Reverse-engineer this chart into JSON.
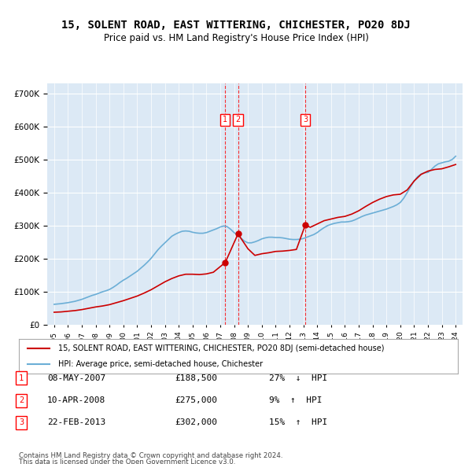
{
  "title": "15, SOLENT ROAD, EAST WITTERING, CHICHESTER, PO20 8DJ",
  "subtitle": "Price paid vs. HM Land Registry's House Price Index (HPI)",
  "ylabel_format": "£{0}K",
  "yticks": [
    0,
    100000,
    200000,
    300000,
    400000,
    500000,
    600000,
    700000
  ],
  "ytick_labels": [
    "£0",
    "£100K",
    "£200K",
    "£300K",
    "£400K",
    "£500K",
    "£600K",
    "£700K"
  ],
  "background_color": "#dce9f5",
  "plot_bg": "#dce9f5",
  "grid_color": "white",
  "red_line_label": "15, SOLENT ROAD, EAST WITTERING, CHICHESTER, PO20 8DJ (semi-detached house)",
  "blue_line_label": "HPI: Average price, semi-detached house, Chichester",
  "transactions": [
    {
      "num": 1,
      "date": "08-MAY-2007",
      "price": 188500,
      "pct": "27%",
      "dir": "↓",
      "x_year": 2007.36
    },
    {
      "num": 2,
      "date": "10-APR-2008",
      "price": 275000,
      "pct": "9%",
      "dir": "↑",
      "x_year": 2008.28
    },
    {
      "num": 3,
      "date": "22-FEB-2013",
      "price": 302000,
      "pct": "15%",
      "dir": "↑",
      "x_year": 2013.14
    }
  ],
  "footer1": "Contains HM Land Registry data © Crown copyright and database right 2024.",
  "footer2": "This data is licensed under the Open Government Licence v3.0.",
  "hpi_years": [
    1995.0,
    1995.25,
    1995.5,
    1995.75,
    1996.0,
    1996.25,
    1996.5,
    1996.75,
    1997.0,
    1997.25,
    1997.5,
    1997.75,
    1998.0,
    1998.25,
    1998.5,
    1998.75,
    1999.0,
    1999.25,
    1999.5,
    1999.75,
    2000.0,
    2000.25,
    2000.5,
    2000.75,
    2001.0,
    2001.25,
    2001.5,
    2001.75,
    2002.0,
    2002.25,
    2002.5,
    2002.75,
    2003.0,
    2003.25,
    2003.5,
    2003.75,
    2004.0,
    2004.25,
    2004.5,
    2004.75,
    2005.0,
    2005.25,
    2005.5,
    2005.75,
    2006.0,
    2006.25,
    2006.5,
    2006.75,
    2007.0,
    2007.25,
    2007.5,
    2007.75,
    2008.0,
    2008.25,
    2008.5,
    2008.75,
    2009.0,
    2009.25,
    2009.5,
    2009.75,
    2010.0,
    2010.25,
    2010.5,
    2010.75,
    2011.0,
    2011.25,
    2011.5,
    2011.75,
    2012.0,
    2012.25,
    2012.5,
    2012.75,
    2013.0,
    2013.25,
    2013.5,
    2013.75,
    2014.0,
    2014.25,
    2014.5,
    2014.75,
    2015.0,
    2015.25,
    2015.5,
    2015.75,
    2016.0,
    2016.25,
    2016.5,
    2016.75,
    2017.0,
    2017.25,
    2017.5,
    2017.75,
    2018.0,
    2018.25,
    2018.5,
    2018.75,
    2019.0,
    2019.25,
    2019.5,
    2019.75,
    2020.0,
    2020.25,
    2020.5,
    2020.75,
    2021.0,
    2021.25,
    2021.5,
    2021.75,
    2022.0,
    2022.25,
    2022.5,
    2022.75,
    2023.0,
    2023.25,
    2023.5,
    2023.75,
    2024.0
  ],
  "hpi_values": [
    62000,
    63000,
    64000,
    65500,
    67000,
    69000,
    71000,
    74000,
    77000,
    81000,
    85000,
    89000,
    92000,
    96000,
    100000,
    103000,
    107000,
    113000,
    120000,
    128000,
    135000,
    141000,
    148000,
    155000,
    162000,
    171000,
    180000,
    190000,
    201000,
    214000,
    227000,
    238000,
    248000,
    258000,
    268000,
    274000,
    279000,
    283000,
    284000,
    283000,
    280000,
    278000,
    277000,
    277000,
    279000,
    283000,
    287000,
    291000,
    296000,
    299000,
    297000,
    289000,
    279000,
    271000,
    262000,
    253000,
    248000,
    248000,
    251000,
    255000,
    260000,
    263000,
    265000,
    265000,
    264000,
    264000,
    263000,
    261000,
    259000,
    258000,
    258000,
    259000,
    261000,
    265000,
    269000,
    273000,
    279000,
    287000,
    294000,
    300000,
    304000,
    307000,
    309000,
    311000,
    311000,
    312000,
    314000,
    318000,
    323000,
    328000,
    332000,
    335000,
    338000,
    341000,
    344000,
    347000,
    350000,
    354000,
    358000,
    363000,
    370000,
    383000,
    400000,
    418000,
    435000,
    448000,
    456000,
    460000,
    461000,
    470000,
    480000,
    487000,
    490000,
    493000,
    495000,
    500000,
    510000
  ],
  "red_years": [
    1995.0,
    1995.5,
    1996.0,
    1996.5,
    1997.0,
    1997.5,
    1998.0,
    1998.5,
    1999.0,
    1999.5,
    2000.0,
    2000.5,
    2001.0,
    2001.5,
    2002.0,
    2002.5,
    2003.0,
    2003.5,
    2004.0,
    2004.5,
    2005.0,
    2005.5,
    2006.0,
    2006.5,
    2007.36,
    2008.28,
    2009.0,
    2009.5,
    2010.0,
    2010.5,
    2011.0,
    2011.5,
    2012.0,
    2012.5,
    2013.14,
    2013.5,
    2014.0,
    2014.5,
    2015.0,
    2015.5,
    2016.0,
    2016.5,
    2017.0,
    2017.5,
    2018.0,
    2018.5,
    2019.0,
    2019.5,
    2020.0,
    2020.5,
    2021.0,
    2021.5,
    2022.0,
    2022.5,
    2023.0,
    2023.5,
    2024.0
  ],
  "red_values": [
    38000,
    39000,
    41000,
    43000,
    46000,
    50000,
    54000,
    57000,
    61000,
    67000,
    73000,
    80000,
    87000,
    96000,
    106000,
    118000,
    130000,
    140000,
    148000,
    153000,
    153000,
    152000,
    154000,
    159000,
    188500,
    275000,
    230000,
    210000,
    215000,
    218000,
    222000,
    223000,
    225000,
    228000,
    302000,
    295000,
    305000,
    315000,
    320000,
    325000,
    328000,
    335000,
    345000,
    358000,
    370000,
    380000,
    388000,
    393000,
    395000,
    408000,
    435000,
    455000,
    465000,
    470000,
    472000,
    478000,
    485000
  ],
  "xlim": [
    1994.5,
    2024.5
  ],
  "ylim": [
    0,
    730000
  ]
}
